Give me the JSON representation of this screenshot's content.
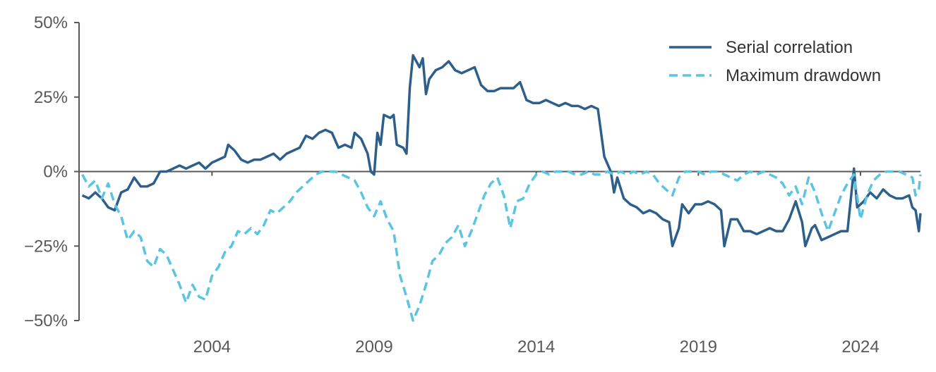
{
  "chart_data": {
    "type": "line",
    "title": "",
    "xlabel": "",
    "ylabel": "",
    "xlim": [
      1999.9,
      2025.85
    ],
    "ylim": [
      -50,
      50
    ],
    "x_ticks": [
      2004,
      2009,
      2014,
      2019,
      2024
    ],
    "x_tick_labels": [
      "2004",
      "2009",
      "2014",
      "2019",
      "2024"
    ],
    "y_ticks": [
      50,
      25,
      0,
      -25,
      -50
    ],
    "y_tick_labels": [
      "50%",
      "25%",
      "0%",
      "−25%",
      "−50%"
    ],
    "grid": false,
    "zero_line": true,
    "legend_position": "top-right",
    "series": [
      {
        "name": "Serial correlation",
        "color": "#2d5f8a",
        "style": "solid",
        "points": [
          [
            2000.0,
            -8
          ],
          [
            2000.2,
            -9
          ],
          [
            2000.4,
            -7
          ],
          [
            2000.6,
            -9
          ],
          [
            2000.8,
            -12
          ],
          [
            2001.0,
            -13
          ],
          [
            2001.2,
            -7
          ],
          [
            2001.4,
            -6
          ],
          [
            2001.6,
            -2
          ],
          [
            2001.8,
            -5
          ],
          [
            2002.0,
            -5
          ],
          [
            2002.2,
            -4
          ],
          [
            2002.4,
            0
          ],
          [
            2002.6,
            0
          ],
          [
            2002.8,
            1
          ],
          [
            2003.0,
            2
          ],
          [
            2003.2,
            1
          ],
          [
            2003.4,
            2
          ],
          [
            2003.6,
            3
          ],
          [
            2003.8,
            1
          ],
          [
            2004.0,
            3
          ],
          [
            2004.2,
            4
          ],
          [
            2004.4,
            5
          ],
          [
            2004.5,
            9
          ],
          [
            2004.7,
            7
          ],
          [
            2004.9,
            4
          ],
          [
            2005.1,
            3
          ],
          [
            2005.3,
            4
          ],
          [
            2005.5,
            4
          ],
          [
            2005.7,
            5
          ],
          [
            2005.9,
            6
          ],
          [
            2006.1,
            4
          ],
          [
            2006.3,
            6
          ],
          [
            2006.5,
            7
          ],
          [
            2006.7,
            8
          ],
          [
            2006.9,
            12
          ],
          [
            2007.1,
            11
          ],
          [
            2007.3,
            13
          ],
          [
            2007.5,
            14
          ],
          [
            2007.7,
            13
          ],
          [
            2007.9,
            8
          ],
          [
            2008.1,
            9
          ],
          [
            2008.3,
            8
          ],
          [
            2008.4,
            13
          ],
          [
            2008.6,
            11
          ],
          [
            2008.8,
            6
          ],
          [
            2008.9,
            0
          ],
          [
            2009.0,
            -1
          ],
          [
            2009.1,
            13
          ],
          [
            2009.2,
            9
          ],
          [
            2009.3,
            19
          ],
          [
            2009.5,
            18
          ],
          [
            2009.6,
            19
          ],
          [
            2009.7,
            9
          ],
          [
            2009.9,
            8
          ],
          [
            2010.0,
            6
          ],
          [
            2010.1,
            28
          ],
          [
            2010.2,
            39
          ],
          [
            2010.4,
            35
          ],
          [
            2010.5,
            38
          ],
          [
            2010.6,
            26
          ],
          [
            2010.7,
            31
          ],
          [
            2010.9,
            34
          ],
          [
            2011.1,
            35
          ],
          [
            2011.3,
            37
          ],
          [
            2011.5,
            34
          ],
          [
            2011.7,
            33
          ],
          [
            2011.9,
            34
          ],
          [
            2012.1,
            35
          ],
          [
            2012.3,
            29
          ],
          [
            2012.5,
            27
          ],
          [
            2012.7,
            27
          ],
          [
            2012.9,
            28
          ],
          [
            2013.1,
            28
          ],
          [
            2013.3,
            28
          ],
          [
            2013.5,
            30
          ],
          [
            2013.7,
            24
          ],
          [
            2013.9,
            23
          ],
          [
            2014.1,
            23
          ],
          [
            2014.3,
            24
          ],
          [
            2014.5,
            23
          ],
          [
            2014.7,
            22
          ],
          [
            2014.9,
            23
          ],
          [
            2015.1,
            22
          ],
          [
            2015.3,
            22
          ],
          [
            2015.5,
            21
          ],
          [
            2015.7,
            22
          ],
          [
            2015.9,
            21
          ],
          [
            2016.1,
            5
          ],
          [
            2016.3,
            0
          ],
          [
            2016.4,
            -7
          ],
          [
            2016.5,
            -2
          ],
          [
            2016.7,
            -9
          ],
          [
            2016.9,
            -11
          ],
          [
            2017.1,
            -12
          ],
          [
            2017.3,
            -14
          ],
          [
            2017.5,
            -13
          ],
          [
            2017.7,
            -14
          ],
          [
            2017.9,
            -16
          ],
          [
            2018.1,
            -17
          ],
          [
            2018.2,
            -25
          ],
          [
            2018.4,
            -19
          ],
          [
            2018.5,
            -11
          ],
          [
            2018.7,
            -14
          ],
          [
            2018.9,
            -11
          ],
          [
            2019.1,
            -11
          ],
          [
            2019.3,
            -10
          ],
          [
            2019.5,
            -11
          ],
          [
            2019.7,
            -13
          ],
          [
            2019.8,
            -25
          ],
          [
            2020.0,
            -16
          ],
          [
            2020.2,
            -16
          ],
          [
            2020.4,
            -20
          ],
          [
            2020.6,
            -20
          ],
          [
            2020.8,
            -21
          ],
          [
            2021.0,
            -20
          ],
          [
            2021.2,
            -19
          ],
          [
            2021.4,
            -20
          ],
          [
            2021.6,
            -20
          ],
          [
            2021.8,
            -16
          ],
          [
            2022.0,
            -10
          ],
          [
            2022.2,
            -17
          ],
          [
            2022.3,
            -25
          ],
          [
            2022.5,
            -19
          ],
          [
            2022.6,
            -18
          ],
          [
            2022.8,
            -23
          ],
          [
            2023.0,
            -22
          ],
          [
            2023.2,
            -21
          ],
          [
            2023.4,
            -20
          ],
          [
            2023.6,
            -20
          ],
          [
            2023.8,
            1
          ],
          [
            2023.9,
            -12
          ],
          [
            2024.1,
            -10
          ],
          [
            2024.3,
            -7
          ],
          [
            2024.5,
            -9
          ],
          [
            2024.7,
            -6
          ],
          [
            2024.9,
            -8
          ],
          [
            2025.1,
            -9
          ],
          [
            2025.3,
            -9
          ],
          [
            2025.5,
            -8
          ],
          [
            2025.6,
            -12
          ],
          [
            2025.7,
            -13
          ],
          [
            2025.8,
            -20
          ],
          [
            2025.85,
            -14
          ]
        ]
      },
      {
        "name": "Maximum drawdown",
        "color": "#5bc4e0",
        "style": "dashed",
        "points": [
          [
            2000.0,
            -1
          ],
          [
            2000.2,
            -5
          ],
          [
            2000.4,
            -3
          ],
          [
            2000.6,
            -9
          ],
          [
            2000.8,
            -4
          ],
          [
            2001.0,
            -11
          ],
          [
            2001.2,
            -15
          ],
          [
            2001.4,
            -23
          ],
          [
            2001.6,
            -20
          ],
          [
            2001.8,
            -22
          ],
          [
            2002.0,
            -30
          ],
          [
            2002.2,
            -32
          ],
          [
            2002.4,
            -26
          ],
          [
            2002.6,
            -28
          ],
          [
            2002.8,
            -33
          ],
          [
            2003.0,
            -38
          ],
          [
            2003.2,
            -44
          ],
          [
            2003.4,
            -38
          ],
          [
            2003.6,
            -42
          ],
          [
            2003.8,
            -43
          ],
          [
            2004.0,
            -35
          ],
          [
            2004.2,
            -32
          ],
          [
            2004.4,
            -27
          ],
          [
            2004.6,
            -25
          ],
          [
            2004.8,
            -20
          ],
          [
            2005.0,
            -21
          ],
          [
            2005.2,
            -19
          ],
          [
            2005.4,
            -21
          ],
          [
            2005.6,
            -18
          ],
          [
            2005.8,
            -13
          ],
          [
            2006.0,
            -14
          ],
          [
            2006.2,
            -12
          ],
          [
            2006.4,
            -10
          ],
          [
            2006.6,
            -7
          ],
          [
            2006.8,
            -5
          ],
          [
            2007.0,
            -3
          ],
          [
            2007.2,
            -1
          ],
          [
            2007.4,
            0
          ],
          [
            2007.6,
            0
          ],
          [
            2007.8,
            0
          ],
          [
            2008.0,
            -1
          ],
          [
            2008.2,
            -2
          ],
          [
            2008.4,
            -3
          ],
          [
            2008.6,
            -7
          ],
          [
            2008.8,
            -12
          ],
          [
            2009.0,
            -15
          ],
          [
            2009.2,
            -10
          ],
          [
            2009.4,
            -16
          ],
          [
            2009.6,
            -20
          ],
          [
            2009.8,
            -35
          ],
          [
            2010.0,
            -42
          ],
          [
            2010.2,
            -50
          ],
          [
            2010.4,
            -45
          ],
          [
            2010.6,
            -38
          ],
          [
            2010.8,
            -30
          ],
          [
            2011.0,
            -28
          ],
          [
            2011.2,
            -24
          ],
          [
            2011.4,
            -22
          ],
          [
            2011.6,
            -18
          ],
          [
            2011.8,
            -25
          ],
          [
            2012.0,
            -20
          ],
          [
            2012.2,
            -14
          ],
          [
            2012.4,
            -8
          ],
          [
            2012.6,
            -4
          ],
          [
            2012.8,
            -2
          ],
          [
            2013.0,
            -8
          ],
          [
            2013.2,
            -19
          ],
          [
            2013.4,
            -10
          ],
          [
            2013.6,
            -9
          ],
          [
            2013.8,
            -4
          ],
          [
            2014.0,
            -1
          ],
          [
            2014.2,
            0
          ],
          [
            2014.4,
            -1
          ],
          [
            2014.6,
            0
          ],
          [
            2014.8,
            0
          ],
          [
            2015.0,
            0
          ],
          [
            2015.2,
            -1
          ],
          [
            2015.4,
            -1
          ],
          [
            2015.6,
            0
          ],
          [
            2015.8,
            -1
          ],
          [
            2016.0,
            -1
          ],
          [
            2016.2,
            0
          ],
          [
            2016.4,
            -1
          ],
          [
            2016.6,
            0
          ],
          [
            2016.8,
            -1
          ],
          [
            2017.0,
            0
          ],
          [
            2017.2,
            -1
          ],
          [
            2017.4,
            0
          ],
          [
            2017.6,
            -1
          ],
          [
            2017.8,
            -4
          ],
          [
            2018.0,
            -6
          ],
          [
            2018.2,
            -8
          ],
          [
            2018.4,
            -2
          ],
          [
            2018.6,
            0
          ],
          [
            2018.8,
            0
          ],
          [
            2019.0,
            0
          ],
          [
            2019.2,
            -1
          ],
          [
            2019.4,
            0
          ],
          [
            2019.6,
            0
          ],
          [
            2019.8,
            -1
          ],
          [
            2020.0,
            -2
          ],
          [
            2020.2,
            -3
          ],
          [
            2020.4,
            -1
          ],
          [
            2020.6,
            0
          ],
          [
            2020.8,
            -1
          ],
          [
            2021.0,
            0
          ],
          [
            2021.2,
            -1
          ],
          [
            2021.4,
            -2
          ],
          [
            2021.6,
            -4
          ],
          [
            2021.8,
            -8
          ],
          [
            2022.0,
            -5
          ],
          [
            2022.2,
            -11
          ],
          [
            2022.4,
            -2
          ],
          [
            2022.6,
            -7
          ],
          [
            2022.8,
            -14
          ],
          [
            2023.0,
            -20
          ],
          [
            2023.2,
            -14
          ],
          [
            2023.4,
            -8
          ],
          [
            2023.6,
            -4
          ],
          [
            2023.8,
            -1
          ],
          [
            2024.0,
            -16
          ],
          [
            2024.2,
            -8
          ],
          [
            2024.4,
            -3
          ],
          [
            2024.6,
            -1
          ],
          [
            2024.8,
            0
          ],
          [
            2025.0,
            0
          ],
          [
            2025.2,
            0
          ],
          [
            2025.4,
            -1
          ],
          [
            2025.6,
            -2
          ],
          [
            2025.7,
            -8
          ],
          [
            2025.8,
            -6
          ],
          [
            2025.85,
            -1
          ]
        ]
      }
    ]
  }
}
